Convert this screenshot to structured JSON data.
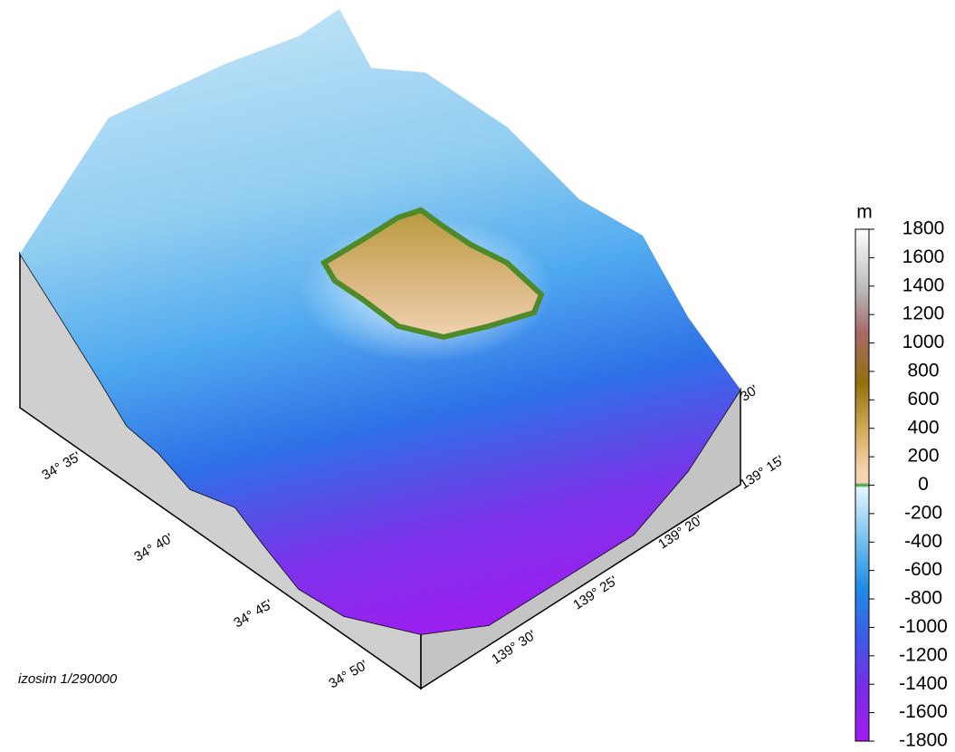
{
  "map": {
    "caption": "izosim  1/290000",
    "lat_labels": [
      "34° 35'",
      "34° 40'",
      "34° 45'",
      "34° 50'"
    ],
    "lon_labels": [
      "139° 15'",
      "139° 20'",
      "139° 25'",
      "139° 30'"
    ],
    "occluded_label": "30'",
    "colorbar": {
      "unit": "m",
      "lim": [
        -1800,
        1800
      ],
      "ticks": [
        1800,
        1600,
        1400,
        1200,
        1000,
        800,
        600,
        400,
        200,
        0,
        -200,
        -400,
        -600,
        -800,
        -1000,
        -1200,
        -1400,
        -1600,
        -1800
      ]
    }
  }
}
